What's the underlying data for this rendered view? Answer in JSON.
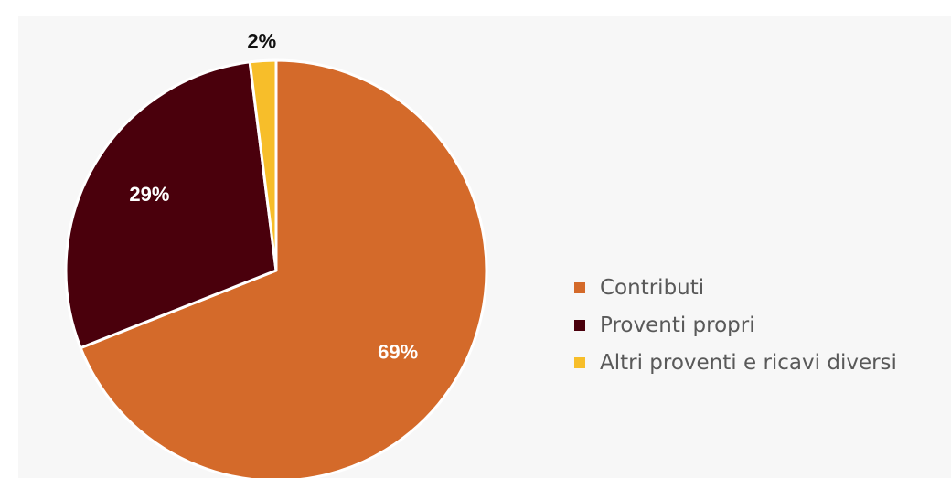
{
  "chart_data": {
    "type": "pie",
    "start_angle_deg": 0,
    "direction": "clockwise",
    "slices": [
      {
        "name": "Contributi",
        "value": 69,
        "label": "69%",
        "color": "#D46A2A",
        "label_color": "#ffffff"
      },
      {
        "name": "Proventi propri",
        "value": 29,
        "label": "29%",
        "color": "#4A000C",
        "label_color": "#ffffff"
      },
      {
        "name": "Altri proventi e ricavi diversi",
        "value": 2,
        "label": "2%",
        "color": "#F7BE2A",
        "label_color": "#111111"
      }
    ],
    "legend_position": "right"
  }
}
